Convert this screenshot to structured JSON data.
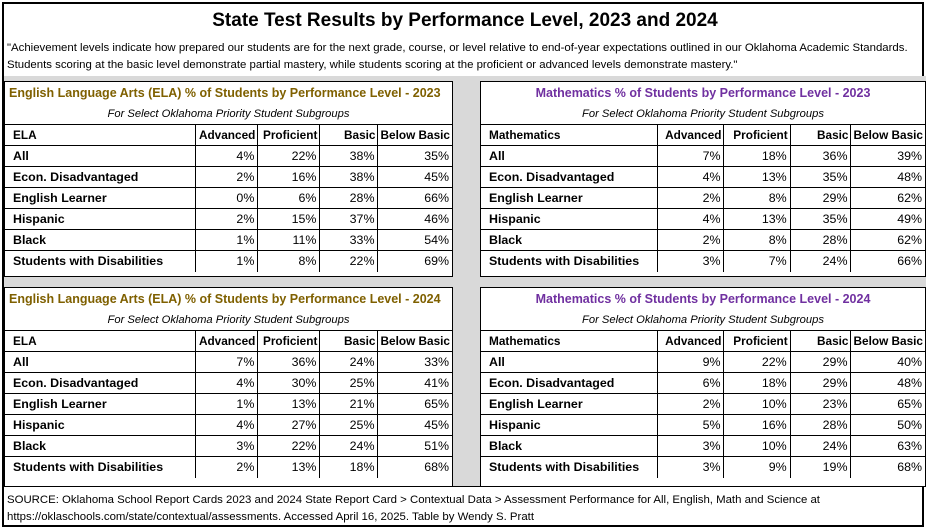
{
  "title": "State Test Results by Performance Level, 2023 and 2024",
  "intro": "\"Achievement levels indicate how prepared our students are for the next grade, course, or level relative to end-of-year expectations outlined in our Oklahoma Academic Standards. Students scoring at the basic level demonstrate partial mastery, while students scoring at the proficient or advanced levels demonstrate mastery.\"",
  "columns": [
    "Advanced",
    "Proficient",
    "Basic",
    "Below Basic"
  ],
  "subtitle": "For Select Oklahoma Priority Student Subgroups",
  "colors": {
    "ela_title": "#7f6000",
    "math_title": "#7030a0",
    "band": "#d9d9d9"
  },
  "panels": {
    "ela2023": {
      "title": "English Language Arts (ELA) % of Students by Performance Level - 2023",
      "subject": "ELA",
      "rows": [
        {
          "group": "All",
          "values": [
            "4%",
            "22%",
            "38%",
            "35%"
          ]
        },
        {
          "group": "Econ. Disadvantaged",
          "values": [
            "2%",
            "16%",
            "38%",
            "45%"
          ]
        },
        {
          "group": "English Learner",
          "values": [
            "0%",
            "6%",
            "28%",
            "66%"
          ]
        },
        {
          "group": "Hispanic",
          "values": [
            "2%",
            "15%",
            "37%",
            "46%"
          ]
        },
        {
          "group": "Black",
          "values": [
            "1%",
            "11%",
            "33%",
            "54%"
          ]
        },
        {
          "group": "Students with Disabilities",
          "values": [
            "1%",
            "8%",
            "22%",
            "69%"
          ]
        }
      ]
    },
    "math2023": {
      "title": "Mathematics % of Students by Performance Level - 2023",
      "subject": "Mathematics",
      "rows": [
        {
          "group": "All",
          "values": [
            "7%",
            "18%",
            "36%",
            "39%"
          ]
        },
        {
          "group": "Econ. Disadvantaged",
          "values": [
            "4%",
            "13%",
            "35%",
            "48%"
          ]
        },
        {
          "group": "English Learner",
          "values": [
            "2%",
            "8%",
            "29%",
            "62%"
          ]
        },
        {
          "group": "Hispanic",
          "values": [
            "4%",
            "13%",
            "35%",
            "49%"
          ]
        },
        {
          "group": "Black",
          "values": [
            "2%",
            "8%",
            "28%",
            "62%"
          ]
        },
        {
          "group": "Students with Disabilities",
          "values": [
            "3%",
            "7%",
            "24%",
            "66%"
          ]
        }
      ]
    },
    "ela2024": {
      "title": "English Language Arts (ELA) % of Students by Performance Level - 2024",
      "subject": "ELA",
      "rows": [
        {
          "group": "All",
          "values": [
            "7%",
            "36%",
            "24%",
            "33%"
          ]
        },
        {
          "group": "Econ. Disadvantaged",
          "values": [
            "4%",
            "30%",
            "25%",
            "41%"
          ]
        },
        {
          "group": "English Learner",
          "values": [
            "1%",
            "13%",
            "21%",
            "65%"
          ]
        },
        {
          "group": "Hispanic",
          "values": [
            "4%",
            "27%",
            "25%",
            "45%"
          ]
        },
        {
          "group": "Black",
          "values": [
            "3%",
            "22%",
            "24%",
            "51%"
          ]
        },
        {
          "group": "Students with Disabilities",
          "values": [
            "2%",
            "13%",
            "18%",
            "68%"
          ]
        }
      ]
    },
    "math2024": {
      "title": "Mathematics % of Students by Performance Level - 2024",
      "subject": "Mathematics",
      "rows": [
        {
          "group": "All",
          "values": [
            "9%",
            "22%",
            "29%",
            "40%"
          ]
        },
        {
          "group": "Econ. Disadvantaged",
          "values": [
            "6%",
            "18%",
            "29%",
            "48%"
          ]
        },
        {
          "group": "English Learner",
          "values": [
            "2%",
            "10%",
            "23%",
            "65%"
          ]
        },
        {
          "group": "Hispanic",
          "values": [
            "5%",
            "16%",
            "28%",
            "50%"
          ]
        },
        {
          "group": "Black",
          "values": [
            "3%",
            "10%",
            "24%",
            "63%"
          ]
        },
        {
          "group": "Students with Disabilities",
          "values": [
            "3%",
            "9%",
            "19%",
            "68%"
          ]
        }
      ]
    }
  },
  "source": "SOURCE: Oklahoma School Report Cards 2023 and 2024 State Report Card > Contextual Data > Assessment Performance for All, English, Math and Science at https://oklaschools.com/state/contextual/assessments. Accessed April 16, 2025. Table by Wendy S. Pratt"
}
